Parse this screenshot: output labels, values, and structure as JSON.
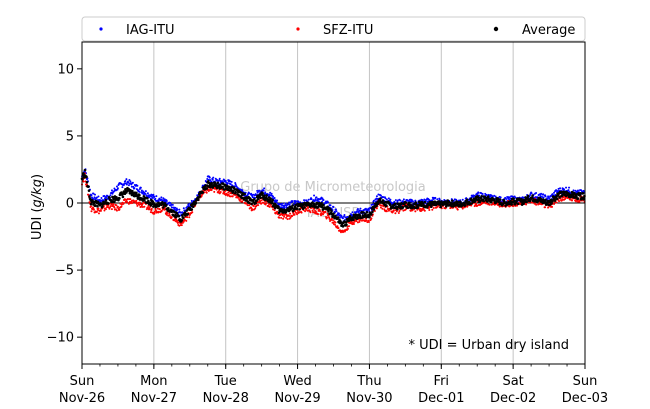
{
  "chart_data": {
    "type": "scatter",
    "ylabel": "UDI (g/kg)",
    "ylabel_parts": [
      "UDI (",
      "g/kg",
      ")"
    ],
    "ylim": [
      -12,
      12
    ],
    "yticks": [
      -10,
      -5,
      0,
      5,
      10
    ],
    "xlim": [
      "2023-11-26",
      "2023-12-03"
    ],
    "xticks": [
      {
        "date": "2023-11-26",
        "day": "Sun",
        "label": "Nov-26"
      },
      {
        "date": "2023-11-27",
        "day": "Mon",
        "label": "Nov-27"
      },
      {
        "date": "2023-11-28",
        "day": "Tue",
        "label": "Nov-28"
      },
      {
        "date": "2023-11-29",
        "day": "Wed",
        "label": "Nov-29"
      },
      {
        "date": "2023-11-30",
        "day": "Thu",
        "label": "Nov-30"
      },
      {
        "date": "2023-12-01",
        "day": "Fri",
        "label": "Dec-01"
      },
      {
        "date": "2023-12-02",
        "day": "Sat",
        "label": "Dec-02"
      },
      {
        "date": "2023-12-03",
        "day": "Sun",
        "label": "Dec-03"
      }
    ],
    "grid": "vertical",
    "zero_line": true,
    "legend": {
      "placement": "top",
      "columns": 3
    },
    "annotation": "* UDI = Urban dry island",
    "watermark": [
      "Grupo de Micrometeorologia",
      "IAG/USP"
    ],
    "series": [
      {
        "name": "IAG-ITU",
        "color": "#0000ff",
        "x": [
          "2023-11-26 00:00",
          "2023-11-26 01:00",
          "2023-11-26 03:00",
          "2023-11-26 06:00",
          "2023-11-26 09:00",
          "2023-11-26 12:00",
          "2023-11-26 15:00",
          "2023-11-26 18:00",
          "2023-11-26 21:00",
          "2023-11-27 00:00",
          "2023-11-27 03:00",
          "2023-11-27 06:00",
          "2023-11-27 09:00",
          "2023-11-27 12:00",
          "2023-11-27 15:00",
          "2023-11-27 18:00",
          "2023-11-27 21:00",
          "2023-11-28 00:00",
          "2023-11-28 03:00",
          "2023-11-28 06:00",
          "2023-11-28 09:00",
          "2023-11-28 12:00",
          "2023-11-28 15:00",
          "2023-11-28 18:00",
          "2023-11-28 21:00",
          "2023-11-29 00:00",
          "2023-11-29 03:00",
          "2023-11-29 06:00",
          "2023-11-29 09:00",
          "2023-11-29 12:00",
          "2023-11-29 15:00",
          "2023-11-29 18:00",
          "2023-11-29 21:00",
          "2023-11-30 00:00",
          "2023-11-30 03:00",
          "2023-11-30 06:00",
          "2023-11-30 09:00",
          "2023-11-30 12:00",
          "2023-11-30 15:00",
          "2023-11-30 18:00",
          "2023-11-30 21:00",
          "2023-12-01 00:00",
          "2023-12-01 03:00",
          "2023-12-01 06:00",
          "2023-12-01 09:00",
          "2023-12-01 12:00",
          "2023-12-01 15:00",
          "2023-12-01 18:00",
          "2023-12-01 21:00",
          "2023-12-02 00:00",
          "2023-12-02 03:00",
          "2023-12-02 06:00",
          "2023-12-02 09:00",
          "2023-12-02 12:00",
          "2023-12-02 15:00",
          "2023-12-02 18:00",
          "2023-12-02 21:00",
          "2023-12-03 00:00"
        ],
        "y": [
          2.0,
          2.5,
          0.6,
          0.2,
          0.5,
          1.2,
          1.6,
          1.2,
          0.8,
          0.4,
          0.2,
          -0.3,
          -0.8,
          -0.2,
          0.6,
          1.8,
          1.6,
          1.6,
          1.3,
          0.8,
          0.4,
          1.0,
          0.6,
          -0.2,
          -0.1,
          0.0,
          0.0,
          0.4,
          0.1,
          -0.5,
          -1.2,
          -0.8,
          -0.6,
          -0.6,
          0.5,
          0.2,
          0.0,
          0.1,
          0.0,
          0.1,
          0.2,
          0.1,
          0.1,
          0.0,
          0.2,
          0.6,
          0.5,
          0.3,
          0.2,
          0.3,
          0.2,
          0.6,
          0.5,
          0.3,
          0.9,
          1.0,
          0.7,
          0.8
        ]
      },
      {
        "name": "SFZ-ITU",
        "color": "#ff0000",
        "x": [
          "2023-11-26 00:00",
          "2023-11-26 01:00",
          "2023-11-26 03:00",
          "2023-11-26 06:00",
          "2023-11-26 09:00",
          "2023-11-26 12:00",
          "2023-11-26 15:00",
          "2023-11-26 18:00",
          "2023-11-26 21:00",
          "2023-11-27 00:00",
          "2023-11-27 03:00",
          "2023-11-27 06:00",
          "2023-11-27 09:00",
          "2023-11-27 12:00",
          "2023-11-27 15:00",
          "2023-11-27 18:00",
          "2023-11-27 21:00",
          "2023-11-28 00:00",
          "2023-11-28 03:00",
          "2023-11-28 06:00",
          "2023-11-28 09:00",
          "2023-11-28 12:00",
          "2023-11-28 15:00",
          "2023-11-28 18:00",
          "2023-11-28 21:00",
          "2023-11-29 00:00",
          "2023-11-29 03:00",
          "2023-11-29 06:00",
          "2023-11-29 09:00",
          "2023-11-29 12:00",
          "2023-11-29 15:00",
          "2023-11-29 18:00",
          "2023-11-29 21:00",
          "2023-11-30 00:00",
          "2023-11-30 03:00",
          "2023-11-30 06:00",
          "2023-11-30 09:00",
          "2023-11-30 12:00",
          "2023-11-30 15:00",
          "2023-11-30 18:00",
          "2023-11-30 21:00",
          "2023-12-01 00:00",
          "2023-12-01 03:00",
          "2023-12-01 06:00",
          "2023-12-01 09:00",
          "2023-12-01 12:00",
          "2023-12-01 15:00",
          "2023-12-01 18:00",
          "2023-12-01 21:00",
          "2023-12-02 00:00",
          "2023-12-02 03:00",
          "2023-12-02 06:00",
          "2023-12-02 09:00",
          "2023-12-02 12:00",
          "2023-12-02 15:00",
          "2023-12-02 18:00",
          "2023-12-02 21:00",
          "2023-12-03 00:00"
        ],
        "y": [
          1.6,
          2.0,
          -0.4,
          -0.6,
          -0.2,
          -0.4,
          0.2,
          0.0,
          -0.2,
          -0.6,
          -0.4,
          -1.0,
          -1.6,
          -0.8,
          0.4,
          1.0,
          1.0,
          0.8,
          0.6,
          0.2,
          -0.4,
          0.2,
          -0.2,
          -1.0,
          -1.0,
          -0.6,
          -0.4,
          -0.6,
          -0.8,
          -1.4,
          -2.2,
          -1.4,
          -1.2,
          -1.2,
          0.0,
          -0.5,
          -0.6,
          -0.3,
          -0.4,
          -0.4,
          -0.3,
          -0.2,
          -0.2,
          -0.3,
          -0.1,
          0.0,
          0.1,
          0.0,
          -0.1,
          0.0,
          0.0,
          0.2,
          0.0,
          -0.3,
          0.3,
          0.4,
          0.3,
          0.3
        ]
      },
      {
        "name": "Average",
        "color": "#000000",
        "x": [
          "2023-11-26 00:00",
          "2023-11-26 01:00",
          "2023-11-26 03:00",
          "2023-11-26 06:00",
          "2023-11-26 09:00",
          "2023-11-26 12:00",
          "2023-11-26 15:00",
          "2023-11-26 18:00",
          "2023-11-26 21:00",
          "2023-11-27 00:00",
          "2023-11-27 03:00",
          "2023-11-27 06:00",
          "2023-11-27 09:00",
          "2023-11-27 12:00",
          "2023-11-27 15:00",
          "2023-11-27 18:00",
          "2023-11-27 21:00",
          "2023-11-28 00:00",
          "2023-11-28 03:00",
          "2023-11-28 06:00",
          "2023-11-28 09:00",
          "2023-11-28 12:00",
          "2023-11-28 15:00",
          "2023-11-28 18:00",
          "2023-11-28 21:00",
          "2023-11-29 00:00",
          "2023-11-29 03:00",
          "2023-11-29 06:00",
          "2023-11-29 09:00",
          "2023-11-29 12:00",
          "2023-11-29 15:00",
          "2023-11-29 18:00",
          "2023-11-29 21:00",
          "2023-11-30 00:00",
          "2023-11-30 03:00",
          "2023-11-30 06:00",
          "2023-11-30 09:00",
          "2023-11-30 12:00",
          "2023-11-30 15:00",
          "2023-11-30 18:00",
          "2023-11-30 21:00",
          "2023-12-01 00:00",
          "2023-12-01 03:00",
          "2023-12-01 06:00",
          "2023-12-01 09:00",
          "2023-12-01 12:00",
          "2023-12-01 15:00",
          "2023-12-01 18:00",
          "2023-12-01 21:00",
          "2023-12-02 00:00",
          "2023-12-02 03:00",
          "2023-12-02 06:00",
          "2023-12-02 09:00",
          "2023-12-02 12:00",
          "2023-12-02 15:00",
          "2023-12-02 18:00",
          "2023-12-02 21:00",
          "2023-12-03 00:00"
        ],
        "y": [
          1.8,
          2.3,
          0.1,
          -0.2,
          0.2,
          0.4,
          0.9,
          0.6,
          0.3,
          -0.1,
          -0.1,
          -0.6,
          -1.2,
          -0.5,
          0.5,
          1.4,
          1.3,
          1.2,
          0.9,
          0.5,
          0.0,
          0.6,
          0.2,
          -0.6,
          -0.5,
          -0.3,
          -0.2,
          -0.1,
          -0.3,
          -0.9,
          -1.7,
          -1.1,
          -0.9,
          -0.9,
          0.2,
          -0.1,
          -0.3,
          -0.1,
          -0.2,
          -0.1,
          -0.1,
          -0.1,
          0.0,
          -0.1,
          0.1,
          0.3,
          0.3,
          0.2,
          0.0,
          0.1,
          0.1,
          0.4,
          0.2,
          0.0,
          0.6,
          0.7,
          0.5,
          0.5
        ]
      }
    ]
  }
}
